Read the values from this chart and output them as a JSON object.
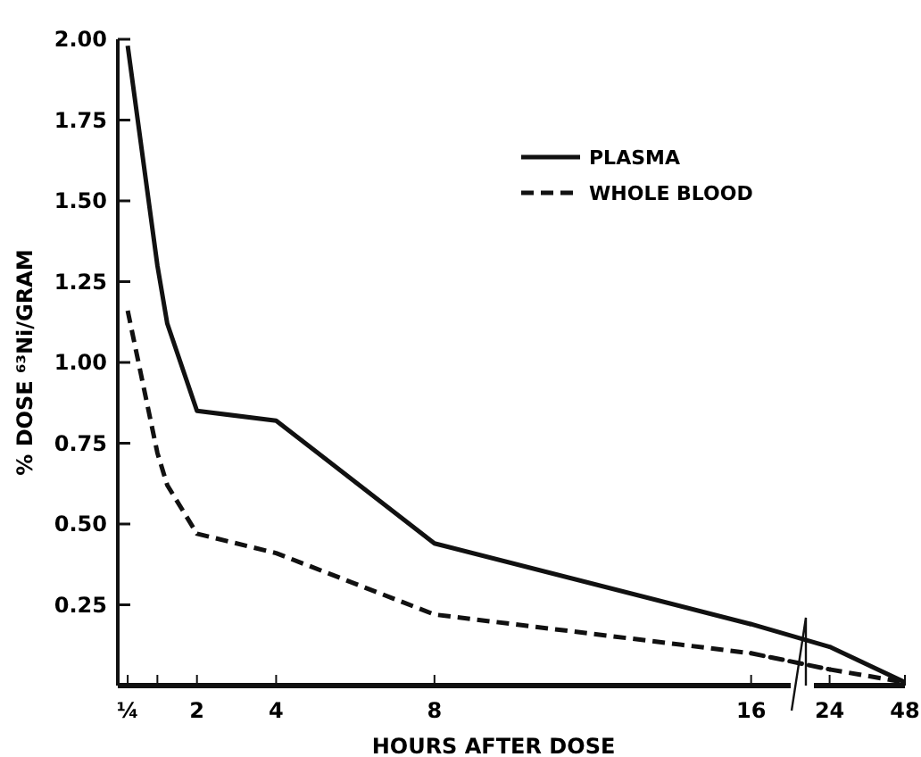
{
  "chart_data": [
    {
      "type": "line",
      "xlabel": "HOURS AFTER DOSE",
      "ylabel": "% DOSE  ⁶³Ni/GRAM",
      "x": [
        0.25,
        1,
        1.25,
        2,
        4,
        8,
        16
      ],
      "series": [
        {
          "name": "PLASMA",
          "color": "#111111",
          "line_style": "solid",
          "values": [
            1.98,
            1.3,
            1.12,
            0.85,
            0.82,
            0.44,
            0.19
          ]
        },
        {
          "name": "WHOLE BLOOD",
          "color": "#111111",
          "line_style": "dashed",
          "values": [
            1.16,
            0.72,
            0.62,
            0.47,
            0.41,
            0.22,
            0.1
          ]
        }
      ],
      "xlim": [
        0,
        17
      ],
      "xticks": [
        {
          "value": 0.25,
          "label": "¼"
        },
        {
          "value": 1,
          "label": null
        },
        2,
        4,
        8,
        16
      ],
      "ylim": [
        0,
        2
      ],
      "yticks": [
        {
          "value": 0.25,
          "label": "0.25"
        },
        {
          "value": 0.5,
          "label": "0.50"
        },
        {
          "value": 0.75,
          "label": "0.75"
        },
        {
          "value": 1,
          "label": "1.00"
        },
        {
          "value": 1.25,
          "label": "1.25"
        },
        {
          "value": 1.5,
          "label": "1.50"
        },
        {
          "value": 1.75,
          "label": "1.75"
        },
        {
          "value": 2,
          "label": "2.00"
        }
      ],
      "grid": false,
      "legend": "top right",
      "marker": "none"
    },
    {
      "type": "line",
      "x": [
        24,
        48
      ],
      "series": [
        {
          "color": "#111111",
          "line_style": "solid",
          "values": [
            0.12,
            0.01
          ]
        },
        {
          "color": "#111111",
          "line_style": "dashed",
          "values": [
            0.05,
            0.01
          ]
        }
      ],
      "xlim": [
        19,
        48
      ],
      "xticks": [
        24,
        48
      ],
      "ylim": [
        0,
        2
      ],
      "tick_labels": "x",
      "grid": false,
      "marker": "none"
    }
  ]
}
